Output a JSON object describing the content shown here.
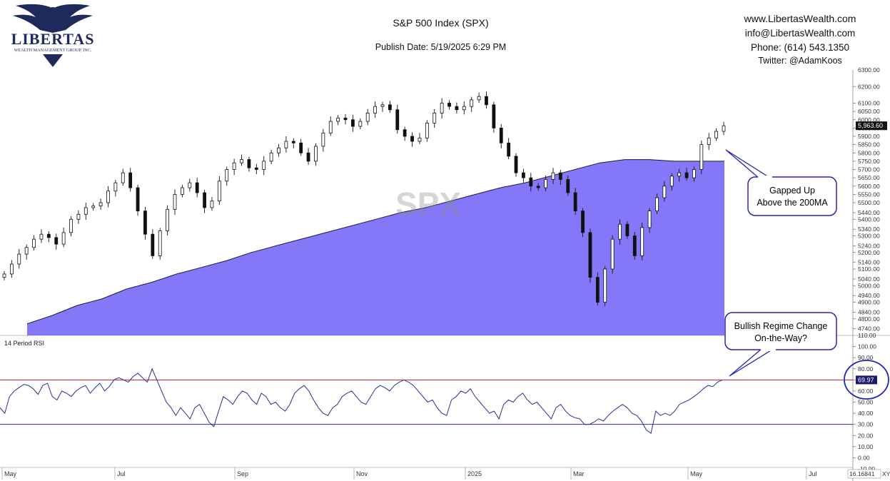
{
  "header": {
    "title": "S&P 500 Index (SPX)",
    "publish_date": "Publish Date: 5/19/2025 6:29 PM",
    "logo_text": "LIBERTAS",
    "logo_subtext": "WEALTH MANAGEMENT GROUP, INC.",
    "website": "www.LibertasWealth.com",
    "email": "info@LibertasWealth.com",
    "phone": "Phone:  (614) 543.1350",
    "twitter": "Twitter:  @AdamKoos"
  },
  "colors": {
    "ma_fill": "#8478f8",
    "rsi_line": "#2b2f8f",
    "upper_band": "#b0232a",
    "lower_band": "#2b2fb0",
    "callout_border": "#2324b8"
  },
  "chart_data": [
    {
      "type": "line",
      "watermark": "SPX",
      "price_axis": {
        "ticks": [
          6200,
          6100,
          6050,
          6000,
          5950,
          5900,
          5850,
          5800,
          5750,
          5700,
          5650,
          5600,
          5550,
          5500,
          5440,
          5400,
          5340,
          5300,
          5240,
          5200,
          5140,
          5100,
          5040,
          5000,
          4940,
          4900,
          4840,
          4800,
          4740
        ],
        "top_label": "6300.00"
      },
      "last_price": "5,963.60",
      "x_labels": [
        "May",
        "Jul",
        "Sep",
        "Nov",
        "2025",
        "Mar",
        "May",
        "Jul"
      ],
      "series": [
        {
          "kind": "candlestick",
          "approx_closes": [
            5070,
            5130,
            5190,
            5230,
            5280,
            5310,
            5290,
            5250,
            5320,
            5400,
            5430,
            5470,
            5480,
            5500,
            5570,
            5620,
            5680,
            5590,
            5450,
            5310,
            5180,
            5330,
            5460,
            5550,
            5590,
            5620,
            5560,
            5470,
            5510,
            5630,
            5700,
            5740,
            5760,
            5710,
            5700,
            5750,
            5800,
            5830,
            5870,
            5860,
            5800,
            5750,
            5840,
            5920,
            5990,
            6010,
            6000,
            5960,
            5990,
            6040,
            6080,
            6090,
            6060,
            5940,
            5900,
            5870,
            5890,
            5980,
            6040,
            6100,
            6080,
            6060,
            6080,
            6120,
            6140,
            6090,
            5950,
            5860,
            5780,
            5680,
            5650,
            5600,
            5590,
            5640,
            5680,
            5640,
            5560,
            5450,
            5320,
            5050,
            4900,
            5100,
            5280,
            5370,
            5300,
            5180,
            5350,
            5450,
            5530,
            5600,
            5660,
            5680,
            5650,
            5700,
            5850,
            5890,
            5930,
            5963.6
          ]
        },
        {
          "name": "200MA",
          "kind": "area",
          "values": [
            4770,
            4820,
            4880,
            4920,
            4980,
            5020,
            5070,
            5110,
            5150,
            5200,
            5240,
            5280,
            5320,
            5360,
            5400,
            5440,
            5470,
            5510,
            5550,
            5590,
            5620,
            5660,
            5700,
            5740,
            5760,
            5760,
            5750,
            5750,
            5750
          ]
        }
      ]
    },
    {
      "type": "line",
      "title": "14 Period RSI",
      "y_ticks": [
        100,
        90,
        80,
        70,
        60,
        50,
        40,
        30,
        20,
        10,
        0
      ],
      "bands": [
        70,
        30
      ],
      "last_value": "69.97",
      "values": [
        45,
        40,
        55,
        60,
        63,
        66,
        65,
        62,
        57,
        65,
        67,
        55,
        52,
        60,
        58,
        55,
        60,
        63,
        65,
        58,
        63,
        67,
        60,
        64,
        70,
        72,
        70,
        68,
        73,
        76,
        72,
        68,
        80,
        70,
        60,
        50,
        45,
        38,
        45,
        40,
        35,
        45,
        48,
        40,
        32,
        28,
        42,
        55,
        52,
        48,
        55,
        60,
        58,
        52,
        48,
        58,
        55,
        48,
        50,
        45,
        42,
        48,
        58,
        62,
        65,
        60,
        52,
        45,
        40,
        38,
        45,
        48,
        55,
        58,
        60,
        55,
        50,
        48,
        55,
        62,
        65,
        63,
        60,
        65,
        68,
        70,
        68,
        65,
        60,
        55,
        50,
        52,
        45,
        40,
        38,
        52,
        55,
        60,
        58,
        62,
        55,
        50,
        45,
        40,
        42,
        35,
        48,
        52,
        50,
        55,
        58,
        52,
        48,
        50,
        45,
        40,
        35,
        45,
        48,
        42,
        38,
        36,
        35,
        30,
        30,
        32,
        35,
        33,
        38,
        42,
        45,
        48,
        45,
        40,
        38,
        33,
        25,
        22,
        42,
        38,
        40,
        38,
        42,
        48,
        50,
        52,
        55,
        58,
        62,
        65,
        64,
        68,
        69.97
      ],
      "axis_extremes": [
        "110.00",
        "-10.00"
      ],
      "scrollbar_value": "16.16841",
      "corner_label": "XY"
    }
  ],
  "annotations": [
    {
      "line1": "Gapped Up",
      "line2": "Above the 200MA"
    },
    {
      "line1": "Bullish Regime Change",
      "line2": "On-the-Way?"
    }
  ]
}
